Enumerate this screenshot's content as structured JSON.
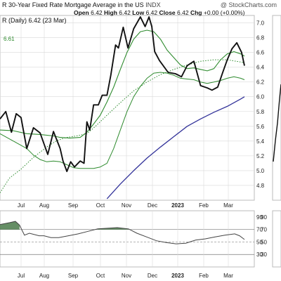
{
  "header": {
    "title": "R 30-Year Fixed Rate Mortgage Average in the US",
    "exchange": "INDX",
    "source": "@ StockCharts.com",
    "open_label": "Open",
    "open_value": "6.42",
    "high_label": "High",
    "high_value": "6.42",
    "low_label": "Low",
    "low_value": "6.42",
    "close_label": "Close",
    "close_value": "6.42",
    "chg_label": "Chg",
    "chg_value": "+0.00 (+0.00%)",
    "series_label": "R (Daily) 6.42 (23 Mar)",
    "ma_value_label": "6.61"
  },
  "colors": {
    "price": "#111111",
    "ma_short": "#2e8b2e",
    "ma_mid": "#2e8b2e",
    "ma_long": "#33339a",
    "rsi_line": "#444444",
    "rsi_fill": "#4a7a4a",
    "grid": "#d9d9d9",
    "accent_green": "#2e8b2e"
  },
  "chart_data": [
    {
      "type": "line",
      "x_tick_labels": [
        "Jul",
        "Aug",
        "Sep",
        "Oct",
        "Nov",
        "Dec",
        "2023",
        "Feb",
        "Mar"
      ],
      "y_tick_labels": [
        "4.8",
        "5.0",
        "5.2",
        "5.4",
        "5.6",
        "5.8",
        "6.0",
        "6.2",
        "6.4",
        "6.6",
        "6.8",
        "7.0"
      ],
      "ylim": [
        4.6,
        7.1
      ],
      "grid": true,
      "series": [
        {
          "key": "price",
          "values": [
            [
              0.0,
              5.7
            ],
            [
              6,
              5.8
            ],
            [
              12,
              5.52
            ],
            [
              17,
              5.77
            ],
            [
              22,
              5.72
            ],
            [
              28,
              5.3
            ],
            [
              35,
              5.58
            ],
            [
              42,
              5.51
            ],
            [
              50,
              5.22
            ],
            [
              56,
              5.53
            ],
            [
              63,
              5.3
            ],
            [
              66,
              5.13
            ],
            [
              70,
              4.99
            ],
            [
              74,
              5.12
            ],
            [
              78,
              5.05
            ],
            [
              84,
              5.13
            ],
            [
              88,
              5.1
            ],
            [
              91,
              5.66
            ],
            [
              94,
              5.55
            ],
            [
              98,
              5.89
            ],
            [
              103,
              5.89
            ],
            [
              107,
              6.02
            ],
            [
              112,
              6.02
            ],
            [
              116,
              6.29
            ],
            [
              121,
              6.7
            ],
            [
              124,
              6.66
            ],
            [
              129,
              6.94
            ],
            [
              134,
              6.66
            ],
            [
              140,
              6.92
            ],
            [
              147,
              7.08
            ],
            [
              152,
              6.95
            ],
            [
              156,
              7.08
            ],
            [
              159,
              6.95
            ],
            [
              162,
              6.61
            ],
            [
              167,
              6.49
            ],
            [
              176,
              6.33
            ],
            [
              184,
              6.31
            ],
            [
              190,
              6.27
            ],
            [
              196,
              6.42
            ],
            [
              203,
              6.48
            ],
            [
              210,
              6.15
            ],
            [
              217,
              6.12
            ],
            [
              222,
              6.09
            ],
            [
              228,
              6.13
            ],
            [
              233,
              6.32
            ],
            [
              238,
              6.5
            ],
            [
              243,
              6.65
            ],
            [
              248,
              6.73
            ],
            [
              253,
              6.6
            ],
            [
              256,
              6.42
            ]
          ]
        },
        {
          "key": "ma_short",
          "values": [
            [
              0.0,
              5.55
            ],
            [
              14,
              5.54
            ],
            [
              28,
              5.5
            ],
            [
              42,
              5.49
            ],
            [
              56,
              5.47
            ],
            [
              63,
              5.45
            ],
            [
              73,
              5.44
            ],
            [
              84,
              5.45
            ],
            [
              91,
              5.52
            ],
            [
              98,
              5.63
            ],
            [
              105,
              5.75
            ],
            [
              112,
              5.93
            ],
            [
              119,
              6.13
            ],
            [
              126,
              6.37
            ],
            [
              133,
              6.6
            ],
            [
              140,
              6.78
            ],
            [
              147,
              6.88
            ],
            [
              154,
              6.9
            ],
            [
              161,
              6.88
            ],
            [
              168,
              6.78
            ],
            [
              175,
              6.63
            ],
            [
              182,
              6.53
            ],
            [
              189,
              6.43
            ],
            [
              196,
              6.38
            ],
            [
              203,
              6.39
            ],
            [
              210,
              6.37
            ],
            [
              217,
              6.35
            ],
            [
              224,
              6.38
            ],
            [
              231,
              6.5
            ],
            [
              238,
              6.58
            ],
            [
              245,
              6.61
            ],
            [
              252,
              6.58
            ],
            [
              256,
              6.55
            ]
          ]
        },
        {
          "key": "ma_mid",
          "values": [
            [
              0.0,
              4.7
            ],
            [
              10,
              4.9
            ],
            [
              22,
              5.02
            ],
            [
              35,
              5.18
            ],
            [
              42,
              5.25
            ],
            [
              50,
              5.33
            ],
            [
              60,
              5.41
            ],
            [
              70,
              5.45
            ],
            [
              80,
              5.47
            ],
            [
              91,
              5.5
            ],
            [
              100,
              5.6
            ],
            [
              112,
              5.75
            ],
            [
              126,
              5.92
            ],
            [
              140,
              6.08
            ],
            [
              154,
              6.2
            ],
            [
              168,
              6.3
            ],
            [
              182,
              6.37
            ],
            [
              196,
              6.43
            ],
            [
              210,
              6.48
            ],
            [
              224,
              6.5
            ],
            [
              238,
              6.5
            ],
            [
              252,
              6.47
            ],
            [
              256,
              6.46
            ]
          ]
        },
        {
          "key": "ma_long",
          "values": [
            [
              112,
              4.62
            ],
            [
              126,
              4.82
            ],
            [
              140,
              5.0
            ],
            [
              154,
              5.17
            ],
            [
              168,
              5.32
            ],
            [
              182,
              5.46
            ],
            [
              196,
              5.6
            ],
            [
              210,
              5.7
            ],
            [
              224,
              5.79
            ],
            [
              238,
              5.87
            ],
            [
              252,
              5.97
            ],
            [
              256,
              6.0
            ]
          ]
        },
        {
          "key": "ma_extra",
          "values": [
            [
              0.0,
              5.5
            ],
            [
              7,
              5.45
            ],
            [
              14,
              5.4
            ],
            [
              21,
              5.35
            ],
            [
              28,
              5.3
            ],
            [
              35,
              5.21
            ],
            [
              42,
              5.15
            ],
            [
              49,
              5.12
            ],
            [
              56,
              5.13
            ],
            [
              63,
              5.12
            ],
            [
              70,
              5.08
            ],
            [
              77,
              5.04
            ],
            [
              84,
              5.03
            ],
            [
              91,
              5.03
            ],
            [
              98,
              5.03
            ],
            [
              105,
              5.05
            ],
            [
              112,
              5.1
            ],
            [
              119,
              5.3
            ],
            [
              126,
              5.55
            ],
            [
              133,
              5.8
            ],
            [
              140,
              6.0
            ],
            [
              147,
              6.14
            ],
            [
              154,
              6.25
            ],
            [
              161,
              6.32
            ],
            [
              168,
              6.33
            ],
            [
              175,
              6.32
            ],
            [
              182,
              6.29
            ],
            [
              189,
              6.25
            ],
            [
              196,
              6.24
            ],
            [
              203,
              6.23
            ],
            [
              210,
              6.2
            ],
            [
              217,
              6.18
            ],
            [
              224,
              6.2
            ],
            [
              231,
              6.22
            ],
            [
              238,
              6.25
            ],
            [
              245,
              6.27
            ],
            [
              252,
              6.25
            ],
            [
              256,
              6.23
            ]
          ]
        }
      ]
    },
    {
      "type": "area",
      "y_tick_labels": [
        "90",
        "70",
        "50",
        "30"
      ],
      "ylim": [
        10,
        100
      ],
      "reference_lines": [
        70,
        50,
        30
      ],
      "values": [
        [
          0.0,
          78
        ],
        [
          14,
          81
        ],
        [
          22,
          83
        ],
        [
          28,
          77
        ],
        [
          35,
          61
        ],
        [
          42,
          64
        ],
        [
          56,
          60
        ],
        [
          63,
          60
        ],
        [
          73,
          57
        ],
        [
          84,
          57
        ],
        [
          98,
          60
        ],
        [
          112,
          63
        ],
        [
          126,
          67
        ],
        [
          140,
          71
        ],
        [
          154,
          72
        ],
        [
          168,
          73
        ],
        [
          184,
          71
        ],
        [
          196,
          64
        ],
        [
          210,
          58
        ],
        [
          224,
          52
        ],
        [
          238,
          49
        ],
        [
          252,
          47
        ],
        [
          266,
          48
        ],
        [
          280,
          53
        ],
        [
          294,
          55
        ],
        [
          308,
          58
        ],
        [
          322,
          61
        ],
        [
          336,
          63
        ],
        [
          343,
          60
        ],
        [
          350,
          54
        ]
      ]
    }
  ],
  "footer": {
    "x_tick_labels": [
      "Jul",
      "Aug",
      "Sep",
      "Oct",
      "Nov",
      "Dec",
      "2023",
      "Feb",
      "Mar"
    ]
  },
  "right_panel": {
    "y_tick_labels": [
      "90",
      "70",
      "50",
      "30"
    ]
  }
}
